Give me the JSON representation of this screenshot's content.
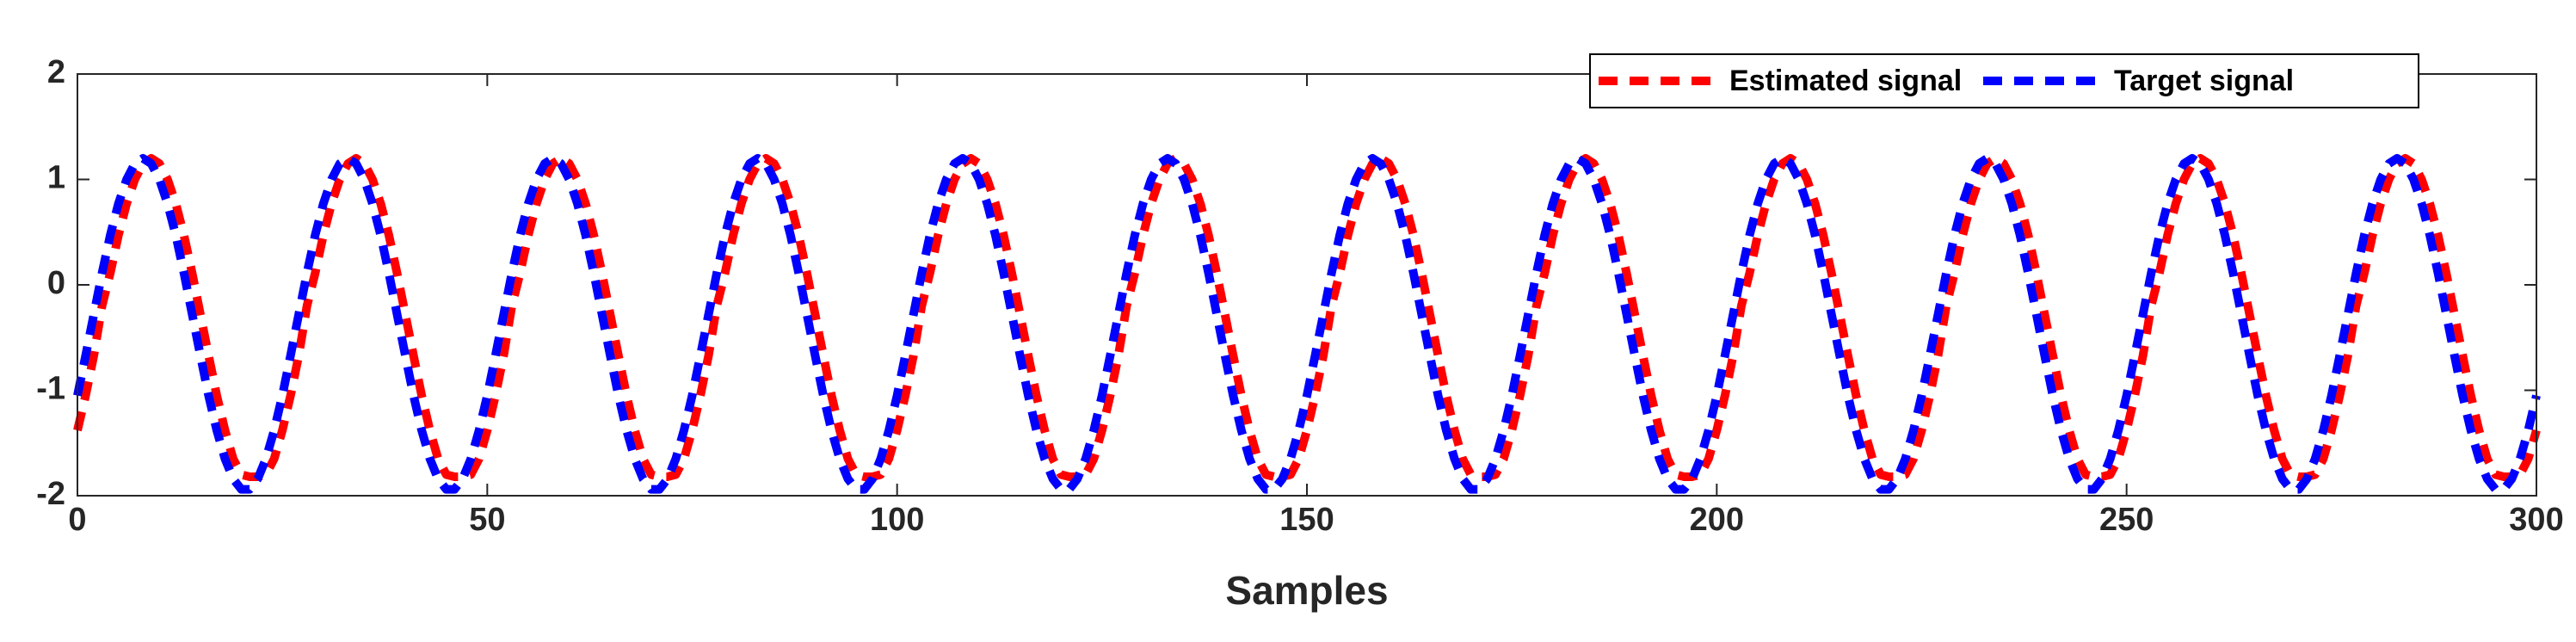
{
  "chart_data": {
    "type": "line",
    "xlabel": "Samples",
    "xlim": [
      0,
      300
    ],
    "xticks": [
      0,
      50,
      100,
      150,
      200,
      250,
      300
    ],
    "ylim": [
      -2,
      2
    ],
    "yticks": [
      -2,
      -1,
      0,
      1,
      2
    ],
    "legend": "top-right",
    "line_style": "dashed",
    "x": [
      0,
      1,
      2,
      3,
      4,
      5,
      6,
      7,
      8,
      9,
      10,
      11,
      12,
      13,
      14,
      15,
      16,
      17,
      18,
      19,
      20,
      21,
      22,
      23,
      24,
      25,
      26,
      27,
      28,
      29,
      30,
      31,
      32,
      33,
      34,
      35,
      36,
      37,
      38,
      39,
      40,
      41,
      42,
      43,
      44,
      45,
      46,
      47,
      48,
      49,
      50,
      51,
      52,
      53,
      54,
      55,
      56,
      57,
      58,
      59,
      60,
      61,
      62,
      63,
      64,
      65,
      66,
      67,
      68,
      69,
      70,
      71,
      72,
      73,
      74,
      75,
      76,
      77,
      78,
      79,
      80,
      81,
      82,
      83,
      84,
      85,
      86,
      87,
      88,
      89,
      90,
      91,
      92,
      93,
      94,
      95,
      96,
      97,
      98,
      99,
      100,
      101,
      102,
      103,
      104,
      105,
      106,
      107,
      108,
      109,
      110,
      111,
      112,
      113,
      114,
      115,
      116,
      117,
      118,
      119,
      120,
      121,
      122,
      123,
      124,
      125,
      126,
      127,
      128,
      129,
      130,
      131,
      132,
      133,
      134,
      135,
      136,
      137,
      138,
      139,
      140,
      141,
      142,
      143,
      144,
      145,
      146,
      147,
      148,
      149,
      150,
      151,
      152,
      153,
      154,
      155,
      156,
      157,
      158,
      159,
      160,
      161,
      162,
      163,
      164,
      165,
      166,
      167,
      168,
      169,
      170,
      171,
      172,
      173,
      174,
      175,
      176,
      177,
      178,
      179,
      180,
      181,
      182,
      183,
      184,
      185,
      186,
      187,
      188,
      189,
      190,
      191,
      192,
      193,
      194,
      195,
      196,
      197,
      198,
      199,
      200,
      201,
      202,
      203,
      204,
      205,
      206,
      207,
      208,
      209,
      210,
      211,
      212,
      213,
      214,
      215,
      216,
      217,
      218,
      219,
      220,
      221,
      222,
      223,
      224,
      225,
      226,
      227,
      228,
      229,
      230,
      231,
      232,
      233,
      234,
      235,
      236,
      237,
      238,
      239,
      240,
      241,
      242,
      243,
      244,
      245,
      246,
      247,
      248,
      249,
      250,
      251,
      252,
      253,
      254,
      255,
      256,
      257,
      258,
      259,
      260,
      261,
      262,
      263,
      264,
      265,
      266,
      267,
      268,
      269,
      270,
      271,
      272,
      273,
      274,
      275,
      276,
      277,
      278,
      279,
      280,
      281,
      282,
      283,
      284,
      285,
      286,
      287,
      288,
      289,
      290,
      291,
      292,
      293,
      294,
      295,
      296,
      297,
      298,
      299,
      300
    ],
    "series": [
      {
        "name": "Estimated signal",
        "color": "#ff0000",
        "values": [
          -1.38,
          -1.05,
          -0.67,
          -0.2,
          0.11,
          0.47,
          0.77,
          1.0,
          1.15,
          1.2,
          1.15,
          1.0,
          0.77,
          0.47,
          0.11,
          -0.28,
          -0.67,
          -1.05,
          -1.38,
          -1.65,
          -1.8,
          -1.82,
          -1.82,
          -1.8,
          -1.65,
          -1.38,
          -1.05,
          -0.67,
          -0.2,
          0.11,
          0.47,
          0.77,
          1.0,
          1.15,
          1.2,
          1.15,
          1.0,
          0.77,
          0.47,
          0.11,
          -0.28,
          -0.67,
          -1.05,
          -1.38,
          -1.65,
          -1.8,
          -1.82,
          -1.82,
          -1.8,
          -1.65,
          -1.38,
          -1.05,
          -0.67,
          -0.2,
          0.11,
          0.47,
          0.77,
          1.0,
          1.15,
          1.2,
          1.15,
          1.0,
          0.77,
          0.47,
          0.11,
          -0.28,
          -0.67,
          -1.05,
          -1.38,
          -1.65,
          -1.8,
          -1.82,
          -1.82,
          -1.8,
          -1.65,
          -1.38,
          -1.05,
          -0.67,
          -0.2,
          0.11,
          0.47,
          0.77,
          1.0,
          1.15,
          1.2,
          1.15,
          1.0,
          0.77,
          0.47,
          0.11,
          -0.28,
          -0.67,
          -1.05,
          -1.38,
          -1.65,
          -1.8,
          -1.82,
          -1.82,
          -1.8,
          -1.65,
          -1.38,
          -1.05,
          -0.67,
          -0.2,
          0.11,
          0.47,
          0.77,
          1.0,
          1.15,
          1.2,
          1.15,
          1.0,
          0.77,
          0.47,
          0.11,
          -0.28,
          -0.67,
          -1.05,
          -1.38,
          -1.65,
          -1.8,
          -1.82,
          -1.82,
          -1.8,
          -1.65,
          -1.38,
          -1.05,
          -0.67,
          -0.2,
          0.11,
          0.47,
          0.77,
          1.0,
          1.15,
          1.2,
          1.15,
          1.0,
          0.77,
          0.47,
          0.11,
          -0.28,
          -0.67,
          -1.05,
          -1.38,
          -1.65,
          -1.8,
          -1.82,
          -1.82,
          -1.8,
          -1.65,
          -1.38,
          -1.05,
          -0.67,
          -0.2,
          0.11,
          0.47,
          0.77,
          1.0,
          1.15,
          1.2,
          1.15,
          1.0,
          0.77,
          0.47,
          0.11,
          -0.28,
          -0.67,
          -1.05,
          -1.38,
          -1.65,
          -1.8,
          -1.82,
          -1.82,
          -1.8,
          -1.65,
          -1.38,
          -1.05,
          -0.67,
          -0.2,
          0.11,
          0.47,
          0.77,
          1.0,
          1.15,
          1.2,
          1.15,
          1.0,
          0.77,
          0.47,
          0.11,
          -0.28,
          -0.67,
          -1.05,
          -1.38,
          -1.65,
          -1.8,
          -1.82,
          -1.82,
          -1.8,
          -1.65,
          -1.38,
          -1.05,
          -0.67,
          -0.2,
          0.11,
          0.47,
          0.77,
          1.0,
          1.15,
          1.2,
          1.15,
          1.0,
          0.77,
          0.47,
          0.11,
          -0.28,
          -0.67,
          -1.05,
          -1.38,
          -1.65,
          -1.8,
          -1.82,
          -1.82,
          -1.8,
          -1.65,
          -1.38,
          -1.05,
          -0.67,
          -0.2,
          0.11,
          0.47,
          0.77,
          1.0,
          1.15,
          1.2,
          1.15,
          1.0,
          0.77,
          0.47,
          0.11,
          -0.28,
          -0.67,
          -1.05,
          -1.38,
          -1.65,
          -1.8,
          -1.82,
          -1.82,
          -1.8,
          -1.65,
          -1.38,
          -1.05,
          -0.67,
          -0.2,
          0.11,
          0.47,
          0.77,
          1.0,
          1.15,
          1.2,
          1.15,
          1.0,
          0.77,
          0.47,
          0.11,
          -0.28,
          -0.67,
          -1.05,
          -1.38,
          -1.65,
          -1.8,
          -1.82,
          -1.82,
          -1.8,
          -1.65,
          -1.38,
          -1.05,
          -0.67,
          -0.2,
          0.11,
          0.47,
          0.77,
          1.0,
          1.15,
          1.2,
          1.15,
          1.0,
          0.77,
          0.47,
          0.11,
          -0.28,
          -0.67,
          -1.05,
          -1.38,
          -1.65,
          -1.8,
          -1.82,
          -1.82,
          -1.8,
          -1.65,
          -1.38
        ]
      },
      {
        "name": "Target signal",
        "color": "#0000ff",
        "values": [
          -1.05,
          -0.67,
          -0.28,
          0.11,
          0.47,
          0.77,
          1.0,
          1.15,
          1.2,
          1.15,
          1.0,
          0.77,
          0.47,
          0.11,
          -0.28,
          -0.67,
          -1.05,
          -1.38,
          -1.65,
          -1.84,
          -1.94,
          -1.94,
          -1.84,
          -1.65,
          -1.38,
          -1.05,
          -0.67,
          -0.28,
          0.11,
          0.47,
          0.77,
          1.0,
          1.15,
          1.2,
          1.15,
          1.0,
          0.77,
          0.47,
          0.11,
          -0.28,
          -0.67,
          -1.05,
          -1.38,
          -1.65,
          -1.84,
          -1.94,
          -1.94,
          -1.84,
          -1.65,
          -1.38,
          -1.05,
          -0.67,
          -0.28,
          0.11,
          0.47,
          0.77,
          1.0,
          1.15,
          1.2,
          1.15,
          1.0,
          0.77,
          0.47,
          0.11,
          -0.28,
          -0.67,
          -1.05,
          -1.38,
          -1.65,
          -1.84,
          -1.94,
          -1.94,
          -1.84,
          -1.65,
          -1.38,
          -1.05,
          -0.67,
          -0.28,
          0.11,
          0.47,
          0.77,
          1.0,
          1.15,
          1.2,
          1.15,
          1.0,
          0.77,
          0.47,
          0.11,
          -0.28,
          -0.67,
          -1.05,
          -1.38,
          -1.65,
          -1.84,
          -1.94,
          -1.94,
          -1.84,
          -1.65,
          -1.38,
          -1.05,
          -0.67,
          -0.28,
          0.11,
          0.47,
          0.77,
          1.0,
          1.15,
          1.2,
          1.15,
          1.0,
          0.77,
          0.47,
          0.11,
          -0.28,
          -0.67,
          -1.05,
          -1.38,
          -1.65,
          -1.84,
          -1.94,
          -1.94,
          -1.84,
          -1.65,
          -1.38,
          -1.05,
          -0.67,
          -0.28,
          0.11,
          0.47,
          0.77,
          1.0,
          1.15,
          1.2,
          1.15,
          1.0,
          0.77,
          0.47,
          0.11,
          -0.28,
          -0.67,
          -1.05,
          -1.38,
          -1.65,
          -1.84,
          -1.94,
          -1.94,
          -1.84,
          -1.65,
          -1.38,
          -1.05,
          -0.67,
          -0.28,
          0.11,
          0.47,
          0.77,
          1.0,
          1.15,
          1.2,
          1.15,
          1.0,
          0.77,
          0.47,
          0.11,
          -0.28,
          -0.67,
          -1.05,
          -1.38,
          -1.65,
          -1.84,
          -1.94,
          -1.94,
          -1.84,
          -1.65,
          -1.38,
          -1.05,
          -0.67,
          -0.28,
          0.11,
          0.47,
          0.77,
          1.0,
          1.15,
          1.2,
          1.15,
          1.0,
          0.77,
          0.47,
          0.11,
          -0.28,
          -0.67,
          -1.05,
          -1.38,
          -1.65,
          -1.84,
          -1.94,
          -1.94,
          -1.84,
          -1.65,
          -1.38,
          -1.05,
          -0.67,
          -0.28,
          0.11,
          0.47,
          0.77,
          1.0,
          1.15,
          1.2,
          1.15,
          1.0,
          0.77,
          0.47,
          0.11,
          -0.28,
          -0.67,
          -1.05,
          -1.38,
          -1.65,
          -1.84,
          -1.94,
          -1.94,
          -1.84,
          -1.65,
          -1.38,
          -1.05,
          -0.67,
          -0.28,
          0.11,
          0.47,
          0.77,
          1.0,
          1.15,
          1.2,
          1.15,
          1.0,
          0.77,
          0.47,
          0.11,
          -0.28,
          -0.67,
          -1.05,
          -1.38,
          -1.65,
          -1.84,
          -1.94,
          -1.94,
          -1.84,
          -1.65,
          -1.38,
          -1.05,
          -0.67,
          -0.28,
          0.11,
          0.47,
          0.77,
          1.0,
          1.15,
          1.2,
          1.15,
          1.0,
          0.77,
          0.47,
          0.11,
          -0.28,
          -0.67,
          -1.05,
          -1.38,
          -1.65,
          -1.84,
          -1.94,
          -1.94,
          -1.84,
          -1.65,
          -1.38,
          -1.05,
          -0.67,
          -0.28,
          0.11,
          0.47,
          0.77,
          1.0,
          1.15,
          1.2,
          1.15,
          1.0,
          0.77,
          0.47,
          0.11,
          -0.28,
          -0.67,
          -1.05,
          -1.38,
          -1.65,
          -1.84,
          -1.94,
          -1.94,
          -1.84,
          -1.65,
          -1.38,
          -1.05
        ]
      }
    ]
  }
}
